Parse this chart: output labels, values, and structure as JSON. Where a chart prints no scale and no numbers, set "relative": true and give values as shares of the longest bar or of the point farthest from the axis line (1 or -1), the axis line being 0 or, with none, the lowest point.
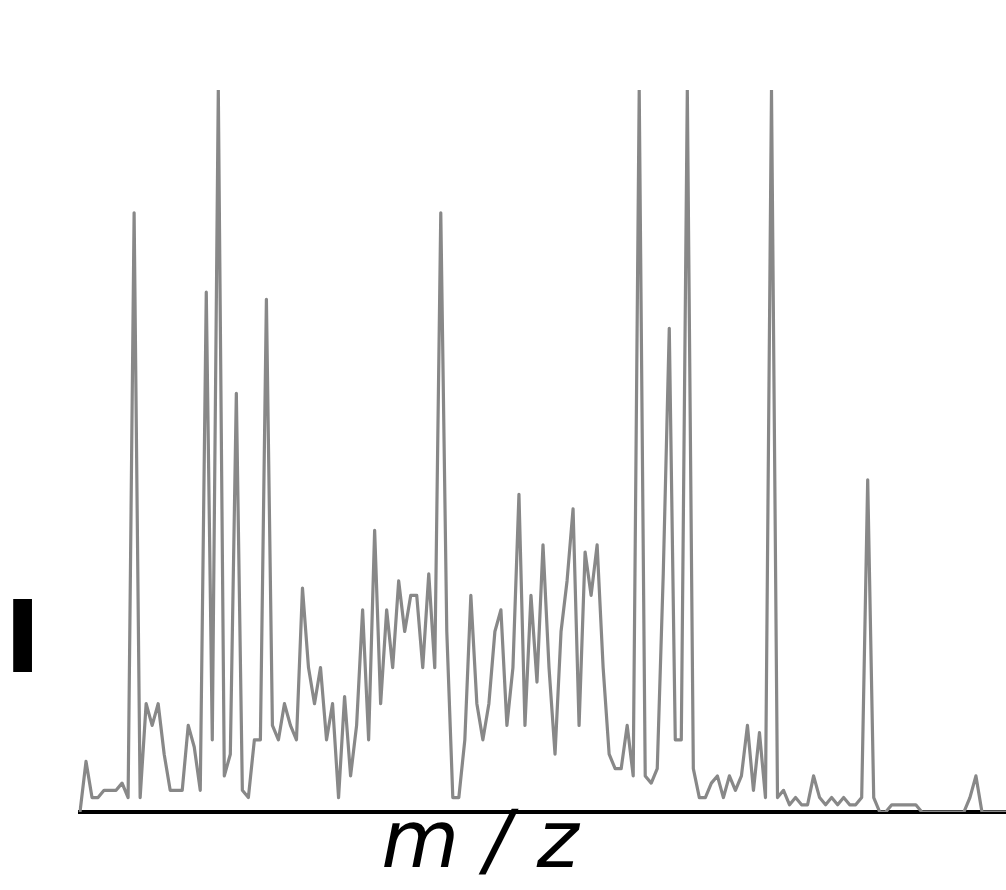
{
  "chart_data": {
    "type": "line",
    "relative": true,
    "xlabel": "m / z",
    "ylabel": "I",
    "legend": false,
    "grid": false,
    "categories": [
      null,
      null,
      null,
      null,
      null,
      null,
      null,
      null,
      null,
      null,
      null,
      null,
      null,
      null,
      null,
      null,
      null,
      null,
      null,
      null,
      null,
      null,
      null,
      null,
      null,
      null,
      null,
      null,
      null,
      null,
      null,
      null,
      null,
      null,
      null,
      null,
      null,
      null,
      null,
      null,
      null,
      null,
      null,
      null,
      null,
      null,
      null,
      null,
      null,
      null,
      null,
      null,
      null,
      null,
      null,
      null,
      null,
      null,
      null,
      null,
      null,
      null,
      null,
      null,
      null,
      null,
      null,
      null,
      null,
      null,
      null,
      null,
      null,
      null,
      null,
      null,
      null,
      null,
      null,
      null,
      null,
      null,
      null,
      null,
      null,
      null,
      null,
      null,
      null,
      null,
      null,
      null,
      null,
      null,
      null,
      null,
      null,
      null,
      null,
      null,
      null,
      null,
      null,
      null,
      null,
      null,
      null,
      null,
      null,
      null,
      null,
      null,
      null,
      null,
      null,
      null,
      null,
      null,
      null,
      null,
      null,
      null,
      null,
      null,
      null,
      null,
      null,
      null,
      null,
      null,
      null,
      null,
      null,
      null,
      null,
      null,
      null,
      null,
      null,
      null,
      null,
      null,
      null,
      null,
      null,
      null,
      null,
      null,
      null,
      null,
      null,
      null,
      null,
      null,
      null
    ],
    "series": [
      {
        "color": "#888888",
        "values": [
          0,
          0.07,
          0.02,
          0.02,
          0.03,
          0.03,
          0.03,
          0.04,
          0.02,
          0.83,
          0.02,
          0.15,
          0.12,
          0.15,
          0.08,
          0.03,
          0.03,
          0.03,
          0.12,
          0.09,
          0.03,
          0.72,
          0.1,
          1,
          0.05,
          0.08,
          0.58,
          0.03,
          0.02,
          0.1,
          0.1,
          0.71,
          0.12,
          0.1,
          0.15,
          0.12,
          0.1,
          0.31,
          0.2,
          0.15,
          0.2,
          0.1,
          0.15,
          0.02,
          0.16,
          0.05,
          0.12,
          0.28,
          0.1,
          0.39,
          0.15,
          0.28,
          0.2,
          0.32,
          0.25,
          0.3,
          0.3,
          0.2,
          0.33,
          0.2,
          0.83,
          0.25,
          0.02,
          0.02,
          0.1,
          0.3,
          0.15,
          0.1,
          0.15,
          0.25,
          0.28,
          0.12,
          0.2,
          0.44,
          0.12,
          0.3,
          0.18,
          0.37,
          0.2,
          0.08,
          0.25,
          0.32,
          0.42,
          0.12,
          0.36,
          0.3,
          0.37,
          0.2,
          0.08,
          0.06,
          0.06,
          0.12,
          0.05,
          1,
          0.05,
          0.04,
          0.06,
          0.33,
          0.67,
          0.1,
          0.1,
          1,
          0.06,
          0.02,
          0.02,
          0.04,
          0.05,
          0.02,
          0.05,
          0.03,
          0.05,
          0.12,
          0.03,
          0.11,
          0.02,
          1,
          0.02,
          0.03,
          0.01,
          0.02,
          0.01,
          0.01,
          0.05,
          0.02,
          0.01,
          0.02,
          0.01,
          0.02,
          0.01,
          0.01,
          0.02,
          0.46,
          0.02,
          0,
          0,
          0.01,
          0.01,
          0.01,
          0.01,
          0.01,
          0,
          0,
          0,
          0,
          0,
          0,
          0,
          0,
          0.02,
          0.05,
          0,
          0,
          0,
          0,
          0
        ]
      }
    ]
  }
}
